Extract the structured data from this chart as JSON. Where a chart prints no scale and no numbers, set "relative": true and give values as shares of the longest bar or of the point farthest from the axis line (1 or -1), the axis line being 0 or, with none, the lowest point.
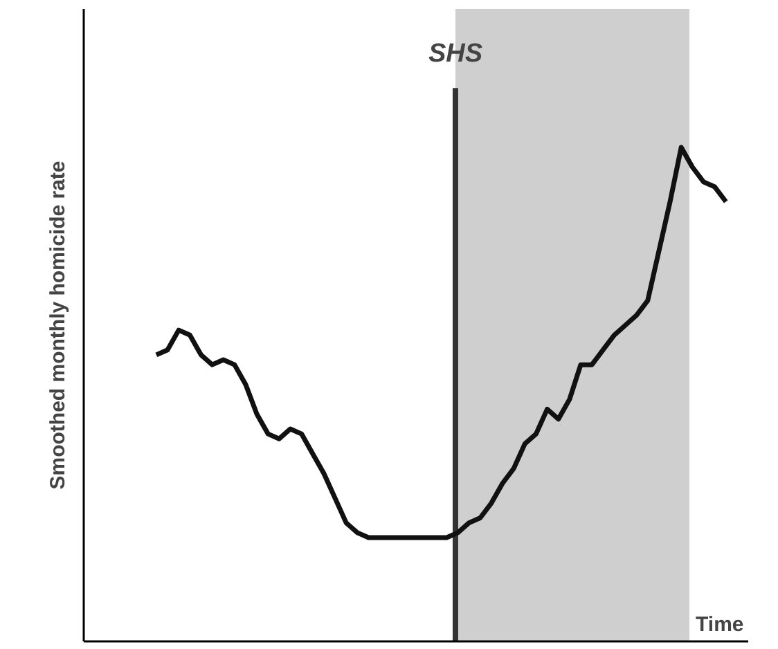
{
  "chart_data": {
    "type": "line",
    "relative": true,
    "xlabel": "Time",
    "ylabel": "Smoothed monthly homicide rate",
    "categories": [
      null,
      null,
      null,
      null,
      null,
      null,
      null,
      null,
      null,
      null,
      null,
      null,
      null,
      null,
      null,
      null,
      null,
      null,
      null,
      null,
      null,
      null,
      null,
      null,
      null,
      null,
      null,
      null,
      null,
      null,
      null,
      null,
      null,
      null,
      null,
      null,
      null,
      null,
      null,
      null,
      null,
      null,
      null,
      null,
      null,
      null,
      null,
      null,
      null,
      null,
      null,
      null
    ],
    "series": [
      {
        "color": "#111111",
        "values": [
          0.58,
          0.59,
          0.63,
          0.62,
          0.58,
          0.56,
          0.57,
          0.56,
          0.52,
          0.46,
          0.42,
          0.41,
          0.43,
          0.42,
          0.38,
          0.34,
          0.29,
          0.24,
          0.22,
          0.21,
          0.21,
          0.21,
          0.21,
          0.21,
          0.21,
          0.21,
          0.21,
          0.22,
          0.24,
          0.25,
          0.28,
          0.32,
          0.35,
          0.4,
          0.42,
          0.47,
          0.45,
          0.49,
          0.56,
          0.56,
          0.59,
          0.62,
          0.64,
          0.66,
          0.69,
          0.79,
          0.89,
          1.0,
          0.96,
          0.93,
          0.92,
          0.89
        ]
      }
    ],
    "annotations": [
      "SHS"
    ],
    "grid": false,
    "tick_labels": false,
    "line_style": "solid",
    "marker": "none"
  }
}
